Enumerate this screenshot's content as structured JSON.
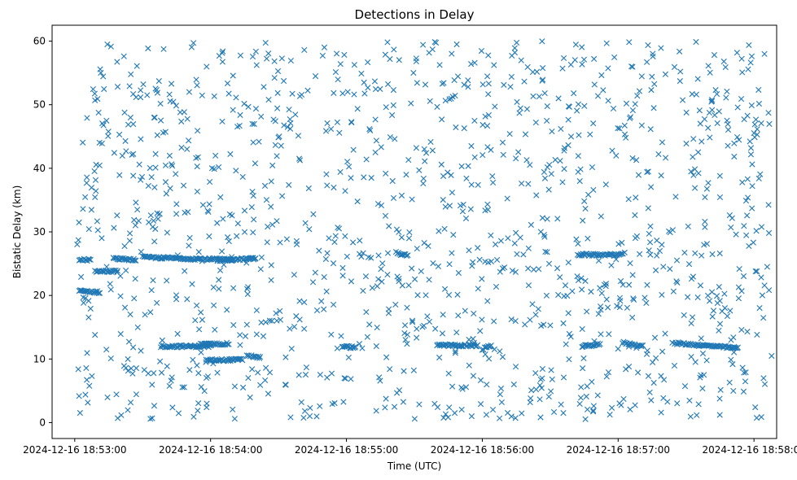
{
  "chart_data": {
    "type": "scatter",
    "title": "Detections in Delay",
    "xlabel": "Time (UTC)",
    "ylabel": "Bistatic Delay (km)",
    "marker": "x",
    "color": "#1f77b4",
    "grid": false,
    "legend": "none",
    "xlim": [
      "2024-12-16 18:52:50",
      "2024-12-16 18:58:10"
    ],
    "ylim": [
      -2.5,
      62.5
    ],
    "xticks": [
      "2024-12-16 18:53:00",
      "2024-12-16 18:54:00",
      "2024-12-16 18:55:00",
      "2024-12-16 18:56:00",
      "2024-12-16 18:57:00",
      "2024-12-16 18:58:00"
    ],
    "yticks": [
      "0",
      "10",
      "20",
      "30",
      "40",
      "50",
      "60"
    ],
    "tracks": [
      {
        "x_start": "2024-12-16 18:53:02",
        "x_end": "2024-12-16 18:53:07",
        "delay_start": 25.6,
        "delay_end": 25.6
      },
      {
        "x_start": "2024-12-16 18:53:02",
        "x_end": "2024-12-16 18:53:11",
        "delay_start": 20.7,
        "delay_end": 20.5
      },
      {
        "x_start": "2024-12-16 18:53:09",
        "x_end": "2024-12-16 18:53:19",
        "delay_start": 23.8,
        "delay_end": 23.8
      },
      {
        "x_start": "2024-12-16 18:53:17",
        "x_end": "2024-12-16 18:53:27",
        "delay_start": 25.8,
        "delay_end": 25.6
      },
      {
        "x_start": "2024-12-16 18:53:30",
        "x_end": "2024-12-16 18:54:10",
        "delay_start": 26.0,
        "delay_end": 25.6
      },
      {
        "x_start": "2024-12-16 18:53:38",
        "x_end": "2024-12-16 18:54:00",
        "delay_start": 12.0,
        "delay_end": 12.0
      },
      {
        "x_start": "2024-12-16 18:53:55",
        "x_end": "2024-12-16 18:54:08",
        "delay_start": 12.3,
        "delay_end": 12.4
      },
      {
        "x_start": "2024-12-16 18:54:03",
        "x_end": "2024-12-16 18:54:20",
        "delay_start": 25.5,
        "delay_end": 25.8
      },
      {
        "x_start": "2024-12-16 18:53:58",
        "x_end": "2024-12-16 18:54:14",
        "delay_start": 9.8,
        "delay_end": 9.9
      },
      {
        "x_start": "2024-12-16 18:54:16",
        "x_end": "2024-12-16 18:54:22",
        "delay_start": 10.6,
        "delay_end": 10.2
      },
      {
        "x_start": "2024-12-16 18:54:58",
        "x_end": "2024-12-16 18:55:04",
        "delay_start": 12.0,
        "delay_end": 11.8
      },
      {
        "x_start": "2024-12-16 18:55:22",
        "x_end": "2024-12-16 18:55:27",
        "delay_start": 26.7,
        "delay_end": 26.2
      },
      {
        "x_start": "2024-12-16 18:55:40",
        "x_end": "2024-12-16 18:55:58",
        "delay_start": 12.2,
        "delay_end": 12.1
      },
      {
        "x_start": "2024-12-16 18:56:00",
        "x_end": "2024-12-16 18:56:04",
        "delay_start": 11.5,
        "delay_end": 12.2
      },
      {
        "x_start": "2024-12-16 18:56:42",
        "x_end": "2024-12-16 18:57:02",
        "delay_start": 26.4,
        "delay_end": 26.4
      },
      {
        "x_start": "2024-12-16 18:56:44",
        "x_end": "2024-12-16 18:56:52",
        "delay_start": 12.0,
        "delay_end": 12.3
      },
      {
        "x_start": "2024-12-16 18:57:02",
        "x_end": "2024-12-16 18:57:11",
        "delay_start": 12.6,
        "delay_end": 12.0
      },
      {
        "x_start": "2024-12-16 18:57:25",
        "x_end": "2024-12-16 18:57:53",
        "delay_start": 12.5,
        "delay_end": 11.7
      }
    ],
    "noise": {
      "x_range": [
        "2024-12-16 18:53:01",
        "2024-12-16 18:58:08"
      ],
      "delay_range": [
        0.5,
        60
      ],
      "approx_count": 1300
    }
  }
}
